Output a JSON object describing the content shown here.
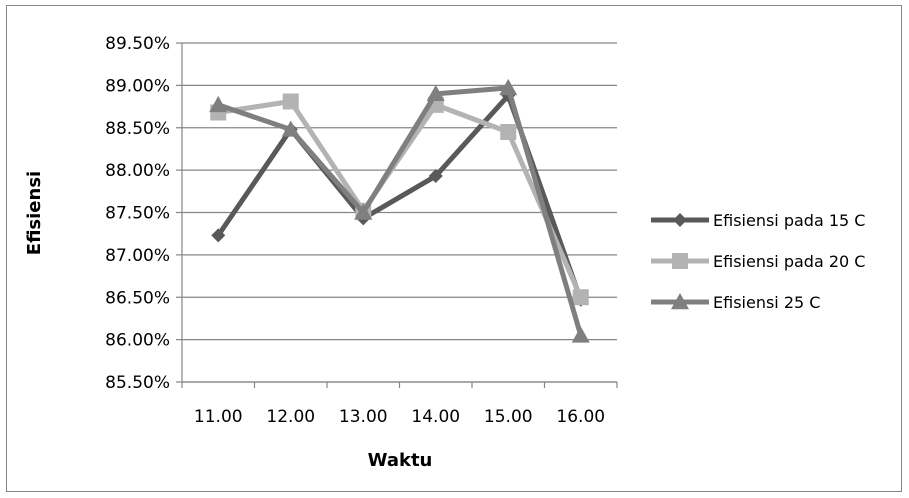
{
  "chart_data": {
    "type": "line",
    "title": "",
    "xlabel": "Waktu",
    "ylabel": "Efisiensi",
    "categories": [
      "11.00",
      "12.00",
      "13.00",
      "14.00",
      "15.00",
      "16.00"
    ],
    "ylim": [
      85.5,
      89.5
    ],
    "yticks": [
      85.5,
      86.0,
      86.5,
      87.0,
      87.5,
      88.0,
      88.5,
      89.0,
      89.5
    ],
    "ytick_labels": [
      "85.50%",
      "86.00%",
      "86.50%",
      "87.00%",
      "87.50%",
      "88.00%",
      "88.50%",
      "89.00%",
      "89.50%"
    ],
    "grid": true,
    "legend_position": "right",
    "series": [
      {
        "name": "Efisiensi  pada 15 C",
        "marker": "diamond",
        "color": "#595959",
        "values": [
          87.23,
          88.48,
          87.43,
          87.93,
          88.88,
          86.47
        ]
      },
      {
        "name": "Efisiensi pada 20 C",
        "marker": "square",
        "color": "#b3b3b3",
        "values": [
          88.68,
          88.81,
          87.52,
          88.77,
          88.45,
          86.5
        ]
      },
      {
        "name": "Efisiensi 25 C",
        "marker": "triangle",
        "color": "#7f7f7f",
        "values": [
          88.77,
          88.48,
          87.5,
          88.9,
          88.97,
          86.05
        ]
      }
    ]
  }
}
